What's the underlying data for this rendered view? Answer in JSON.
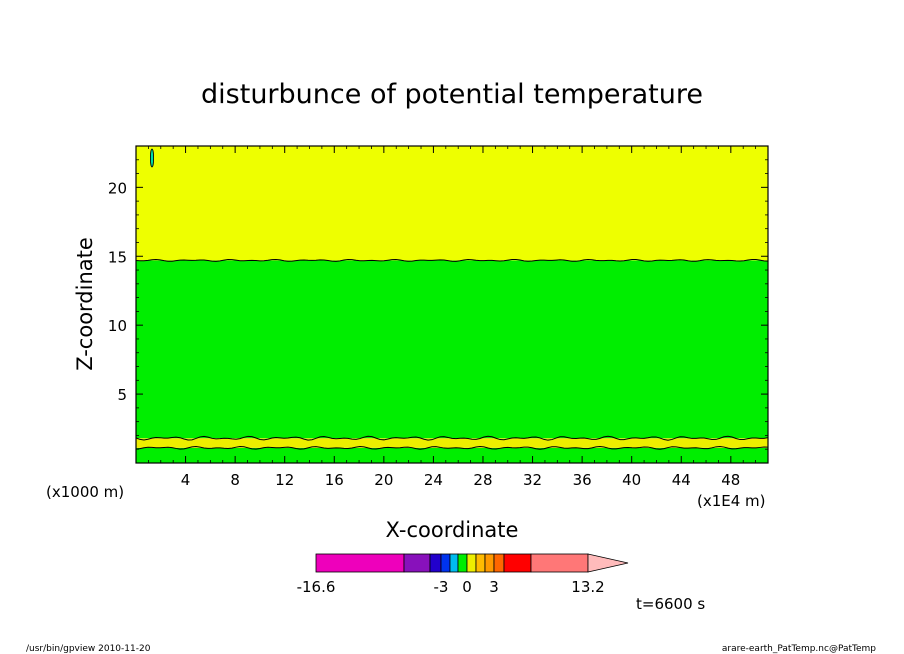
{
  "chart_data": {
    "type": "heatmap",
    "title": "disturbunce of potential temperature",
    "xlabel": "X-coordinate",
    "ylabel": "Z-coordinate",
    "x_unit": "(x1E4 m)",
    "y_unit": "(x1000 m)",
    "xlim": [
      0,
      51
    ],
    "ylim": [
      0,
      23
    ],
    "x_ticks": [
      4,
      8,
      12,
      16,
      20,
      24,
      28,
      32,
      36,
      40,
      44,
      48
    ],
    "y_ticks": [
      5,
      10,
      15,
      20
    ],
    "bands": [
      {
        "z_from": 0.0,
        "z_to": 1.1,
        "color": "#00ee00"
      },
      {
        "z_from": 1.1,
        "z_to": 1.8,
        "color": "#eeee00"
      },
      {
        "z_from": 1.8,
        "z_to": 14.7,
        "color": "#00ee00"
      },
      {
        "z_from": 14.7,
        "z_to": 23.0,
        "color": "#eeff00"
      }
    ],
    "colorbar": {
      "tick_labels": [
        "-16.6",
        "-3",
        "0",
        "3",
        "13.2"
      ],
      "colors": [
        "#ee00bb",
        "#8811bb",
        "#2200cc",
        "#0033ee",
        "#00bbee",
        "#00ee00",
        "#eeee00",
        "#ffbb00",
        "#ff9900",
        "#ff6600",
        "#ff0000",
        "#ff7777",
        "#ffbbbb"
      ]
    },
    "time_label": "t=6600 s"
  },
  "footer": {
    "left": "/usr/bin/gpview   2010-11-20",
    "right": "arare-earth_PatTemp.nc@PatTemp"
  }
}
